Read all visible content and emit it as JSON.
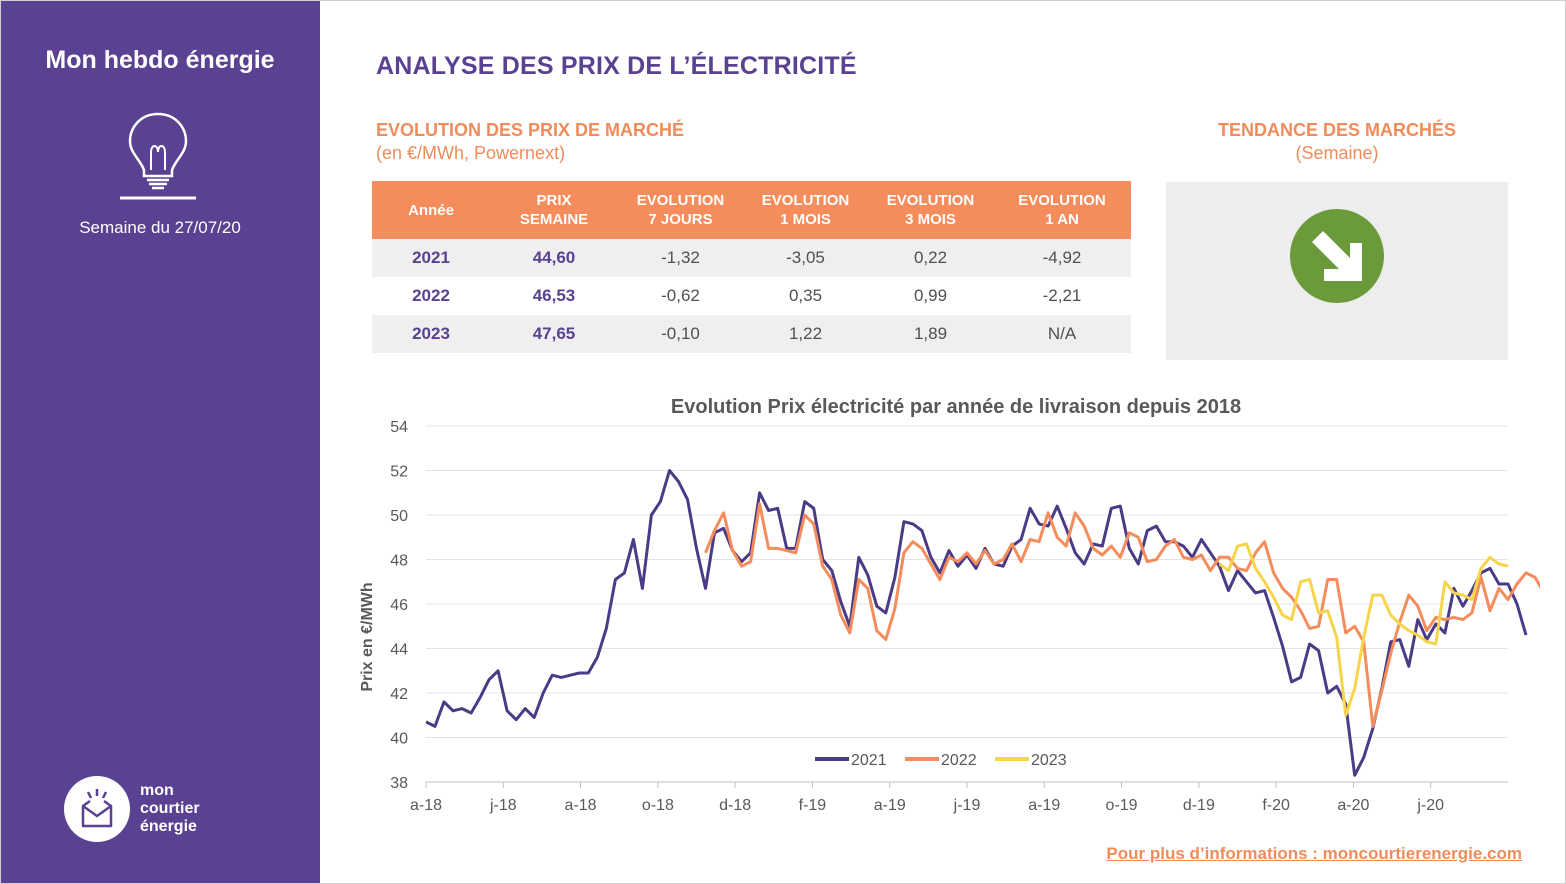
{
  "sidebar": {
    "title": "Mon hebdo énergie",
    "week": "Semaine du 27/07/20",
    "brand": [
      "mon",
      "courtier",
      "énergie"
    ]
  },
  "page_title": "ANALYSE DES PRIX DE L’ÉLECTRICITÉ",
  "market": {
    "title": "EVOLUTION DES PRIX DE MARCHÉ",
    "subtitle": "(en €/MWh, Powernext)",
    "headers": [
      "Année",
      "PRIX\nSEMAINE",
      "EVOLUTION\n7 JOURS",
      "EVOLUTION\n1 MOIS",
      "EVOLUTION\n3 MOIS",
      "EVOLUTION\n1 AN"
    ],
    "rows": [
      [
        "2021",
        "44,60",
        "-1,32",
        "-3,05",
        "0,22",
        "-4,92"
      ],
      [
        "2022",
        "46,53",
        "-0,62",
        "0,35",
        "0,99",
        "-2,21"
      ],
      [
        "2023",
        "47,65",
        "-0,10",
        "1,22",
        "1,89",
        "N/A"
      ]
    ]
  },
  "trend": {
    "title": "TENDANCE DES MARCHÉS",
    "subtitle": "(Semaine)",
    "icon": "down-right-arrow-icon",
    "color": "#6a9a3a"
  },
  "footer_link": "Pour plus d’informations : moncourtierenergie.com",
  "colors": {
    "purple": "#5a4191",
    "orange": "#f58c5c",
    "yellow": "#f6d54a"
  },
  "chart_data": {
    "type": "line",
    "title": "Evolution Prix électricité par année de livraison depuis 2018",
    "ylabel": "Prix en €/MWh",
    "xlabel": "",
    "ylim": [
      38,
      54
    ],
    "yticks": [
      38,
      40,
      42,
      44,
      46,
      48,
      50,
      52,
      54
    ],
    "xticks": [
      "a-18",
      "j-18",
      "a-18",
      "o-18",
      "d-18",
      "f-19",
      "a-19",
      "j-19",
      "a-19",
      "o-19",
      "d-19",
      "f-20",
      "a-20",
      "j-20"
    ],
    "grid": true,
    "legend": "bottom",
    "series": [
      {
        "name": "2021",
        "color": "#4b3a86",
        "start_week": 0,
        "values": [
          40.7,
          40.5,
          41.6,
          41.2,
          41.3,
          41.1,
          41.8,
          42.6,
          43.0,
          41.2,
          40.8,
          41.3,
          40.9,
          42.0,
          42.8,
          42.7,
          42.8,
          42.9,
          42.9,
          43.6,
          44.9,
          47.1,
          47.4,
          48.9,
          46.7,
          50.0,
          50.6,
          52.0,
          51.5,
          50.7,
          48.5,
          46.7,
          49.2,
          49.4,
          48.4,
          47.9,
          48.3,
          51.0,
          50.2,
          50.3,
          48.5,
          48.5,
          50.6,
          50.3,
          48.0,
          47.5,
          46.1,
          45.0,
          48.1,
          47.3,
          45.9,
          45.6,
          47.2,
          49.7,
          49.6,
          49.3,
          48.1,
          47.4,
          48.4,
          47.7,
          48.2,
          47.6,
          48.5,
          47.8,
          47.7,
          48.6,
          48.9,
          50.3,
          49.6,
          49.5,
          50.4,
          49.4,
          48.3,
          47.8,
          48.7,
          48.6,
          50.3,
          50.4,
          48.5,
          47.8,
          49.3,
          49.5,
          48.8,
          48.8,
          48.6,
          48.1,
          48.9,
          48.3,
          47.7,
          46.6,
          47.5,
          47.0,
          46.5,
          46.6,
          45.4,
          44.1,
          42.5,
          42.7,
          44.2,
          43.9,
          42.0,
          42.3,
          41.5,
          38.3,
          39.1,
          40.4,
          42.2,
          44.3,
          44.4,
          43.2,
          45.3,
          44.4,
          45.1,
          44.7,
          46.7,
          45.9,
          46.6,
          47.4,
          47.6,
          46.9,
          46.9,
          46.0,
          44.6
        ]
      },
      {
        "name": "2022",
        "color": "#f58c5c",
        "start_week": 31,
        "values": [
          48.3,
          49.3,
          50.1,
          48.4,
          47.7,
          47.9,
          50.5,
          48.5,
          48.5,
          48.4,
          48.3,
          50.0,
          49.6,
          47.7,
          47.1,
          45.5,
          44.7,
          47.1,
          46.7,
          44.8,
          44.4,
          45.8,
          48.3,
          48.8,
          48.5,
          47.8,
          47.1,
          48.1,
          47.9,
          48.3,
          47.8,
          48.4,
          47.8,
          48.0,
          48.7,
          47.9,
          48.9,
          48.8,
          50.1,
          49.0,
          48.6,
          50.1,
          49.5,
          48.5,
          48.2,
          48.6,
          48.1,
          49.2,
          49.0,
          47.9,
          48.0,
          48.6,
          48.9,
          48.1,
          48.0,
          48.2,
          47.5,
          48.1,
          48.1,
          47.6,
          47.5,
          48.3,
          48.8,
          47.4,
          46.7,
          46.3,
          45.7,
          44.9,
          45.0,
          47.1,
          47.1,
          44.7,
          45.0,
          44.3,
          40.5,
          42.1,
          43.8,
          45.2,
          46.4,
          45.9,
          44.8,
          45.4,
          45.3,
          45.4,
          45.3,
          45.6,
          47.2,
          45.7,
          46.7,
          46.2,
          46.9,
          47.4,
          47.2,
          46.5
        ]
      },
      {
        "name": "2023",
        "color": "#f6d54a",
        "start_week": 88,
        "values": [
          47.8,
          47.5,
          48.6,
          48.7,
          47.6,
          47.0,
          46.3,
          45.5,
          45.3,
          47.0,
          47.1,
          45.6,
          45.7,
          44.5,
          41.0,
          42.2,
          44.5,
          46.4,
          46.4,
          45.5,
          45.1,
          44.8,
          44.6,
          44.3,
          44.2,
          47.0,
          46.5,
          46.4,
          46.2,
          47.6,
          48.1,
          47.8,
          47.7
        ]
      }
    ]
  }
}
